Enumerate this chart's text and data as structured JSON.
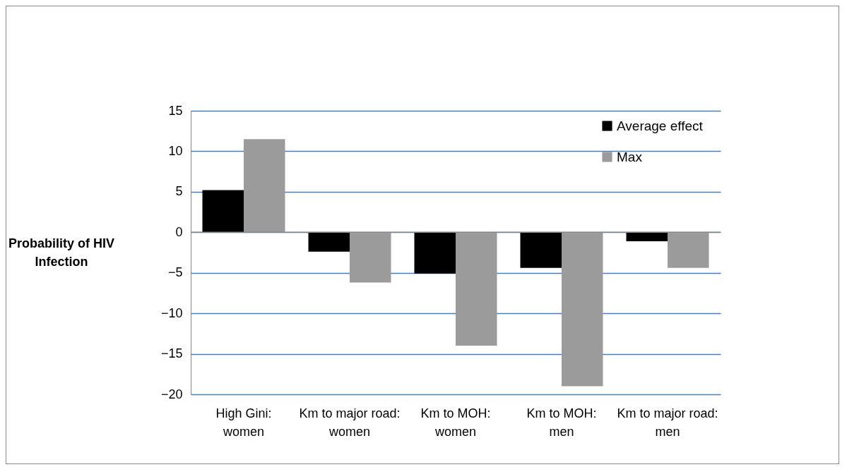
{
  "chart_data": {
    "type": "bar",
    "ylabel": "Probability of HIV Infection",
    "categories": [
      "High Gini: women",
      "Km to major road: women",
      "Km to MOH: women",
      "Km to MOH: men",
      "Km to major road: men"
    ],
    "series": [
      {
        "name": "Average effect",
        "color": "#000000",
        "values": [
          5.2,
          -2.4,
          -5.1,
          -4.4,
          -1.1
        ]
      },
      {
        "name": "Max",
        "color": "#9b9b9b",
        "values": [
          11.5,
          -6.2,
          -14.0,
          -19.0,
          -4.4
        ]
      }
    ],
    "ylim": [
      -20,
      15
    ],
    "yticks": [
      -20,
      -15,
      -10,
      -5,
      0,
      5,
      10,
      15
    ],
    "grid": "y",
    "legend": "top right"
  }
}
